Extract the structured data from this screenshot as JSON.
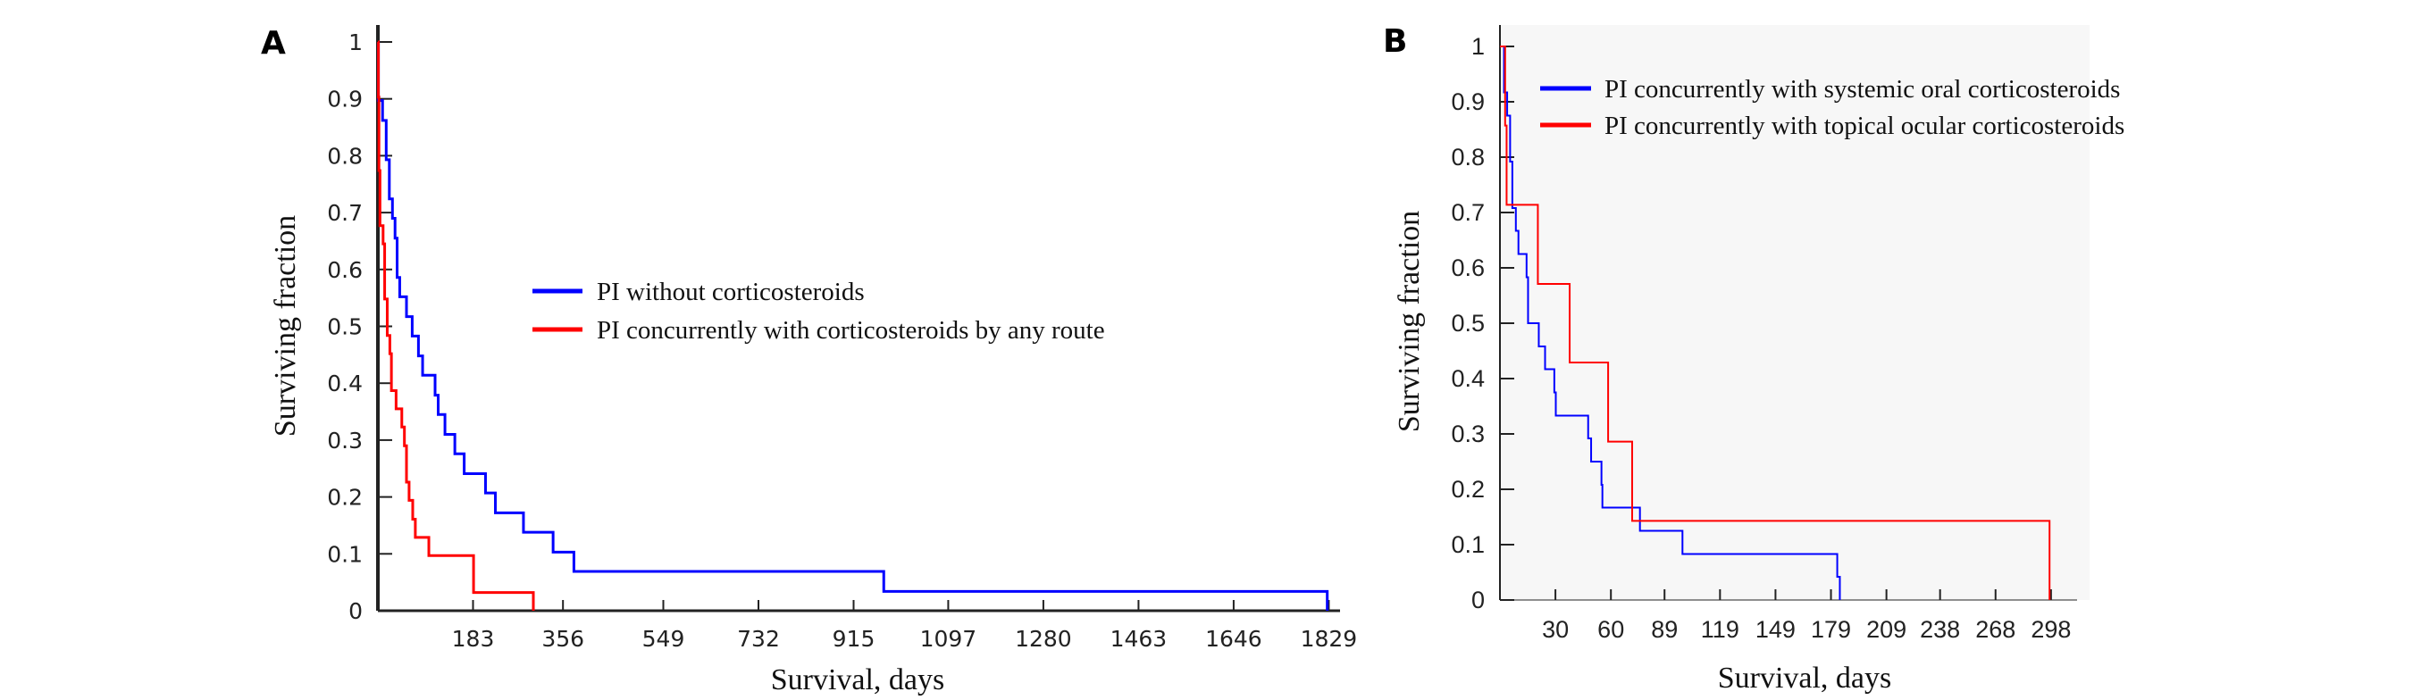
{
  "chart_data": [
    {
      "panel_label": "A",
      "type": "line",
      "step": true,
      "xlabel": "Survival, days",
      "ylabel": "Surviving  fraction",
      "xlim": [
        0,
        1900
      ],
      "ylim": [
        0,
        1
      ],
      "xticks": [
        183,
        356,
        549,
        732,
        915,
        1097,
        1280,
        1463,
        1646,
        1829
      ],
      "yticks": [
        0,
        0.1,
        0.2,
        0.3,
        0.4,
        0.5,
        0.6,
        0.7,
        0.8,
        0.9,
        1
      ],
      "ytick_labels": [
        "0",
        "0.1",
        "0.2",
        "0.3",
        "0.4",
        "0.5",
        "0.6",
        "0.7",
        "0.8",
        "0.9",
        "1"
      ],
      "grid": false,
      "legend_position": "center",
      "series": [
        {
          "name": "PI without corticosteroids",
          "color": "#0000ff",
          "points": [
            [
              0,
              1
            ],
            [
              1,
              0.897
            ],
            [
              9,
              0.862
            ],
            [
              16,
              0.793
            ],
            [
              22,
              0.724
            ],
            [
              28,
              0.69
            ],
            [
              33,
              0.655
            ],
            [
              37,
              0.586
            ],
            [
              42,
              0.552
            ],
            [
              55,
              0.517
            ],
            [
              66,
              0.483
            ],
            [
              78,
              0.448
            ],
            [
              86,
              0.414
            ],
            [
              110,
              0.379
            ],
            [
              116,
              0.345
            ],
            [
              129,
              0.31
            ],
            [
              148,
              0.276
            ],
            [
              166,
              0.241
            ],
            [
              207,
              0.207
            ],
            [
              226,
              0.172
            ],
            [
              280,
              0.138
            ],
            [
              337,
              0.103
            ],
            [
              377,
              0.069
            ],
            [
              973,
              0.034
            ],
            [
              1826,
              0
            ]
          ]
        },
        {
          "name": "PI concurrently with corticosteroids by any route",
          "color": "#ff0000",
          "points": [
            [
              0,
              1
            ],
            [
              1,
              0.903
            ],
            [
              2,
              0.774
            ],
            [
              4,
              0.677
            ],
            [
              10,
              0.645
            ],
            [
              13,
              0.548
            ],
            [
              18,
              0.484
            ],
            [
              23,
              0.452
            ],
            [
              26,
              0.387
            ],
            [
              35,
              0.355
            ],
            [
              46,
              0.323
            ],
            [
              51,
              0.29
            ],
            [
              55,
              0.226
            ],
            [
              60,
              0.194
            ],
            [
              67,
              0.161
            ],
            [
              72,
              0.129
            ],
            [
              98,
              0.097
            ],
            [
              184,
              0.032
            ],
            [
              299,
              0
            ]
          ]
        }
      ]
    },
    {
      "panel_label": "B",
      "type": "line",
      "step": true,
      "xlabel": "Survival, days",
      "ylabel": "Surviving fraction",
      "xlim": [
        0,
        312
      ],
      "ylim": [
        0,
        1
      ],
      "xticks": [
        30,
        60,
        89,
        119,
        149,
        179,
        209,
        238,
        268,
        298
      ],
      "yticks": [
        0,
        0.1,
        0.2,
        0.3,
        0.4,
        0.5,
        0.6,
        0.7,
        0.8,
        0.9,
        1
      ],
      "ytick_labels": [
        "0",
        "0.1",
        "0.2",
        "0.3",
        "0.4",
        "0.5",
        "0.6",
        "0.7",
        "0.8",
        "0.9",
        "1"
      ],
      "grid": false,
      "legend_position": "top-right",
      "background": "#f7f7f7",
      "series": [
        {
          "name": "PI concurrently with systemic oral corticosteroids",
          "color": "#0000ff",
          "points": [
            [
              0,
              1
            ],
            [
              2.2,
              0.917
            ],
            [
              3.9,
              0.875
            ],
            [
              5.5,
              0.792
            ],
            [
              6.7,
              0.708
            ],
            [
              8.6,
              0.667
            ],
            [
              10,
              0.625
            ],
            [
              14.4,
              0.583
            ],
            [
              15.2,
              0.5
            ],
            [
              21,
              0.458
            ],
            [
              24.4,
              0.417
            ],
            [
              29.4,
              0.375
            ],
            [
              30.2,
              0.333
            ],
            [
              47.7,
              0.292
            ],
            [
              49.3,
              0.25
            ],
            [
              54.9,
              0.208
            ],
            [
              55.4,
              0.167
            ],
            [
              75.7,
              0.125
            ],
            [
              98.7,
              0.083
            ],
            [
              182.4,
              0.042
            ],
            [
              183.8,
              0
            ]
          ]
        },
        {
          "name": "PI concurrently with topical ocular corticosteroids",
          "color": "#ff0000",
          "points": [
            [
              0,
              1
            ],
            [
              2.8,
              0.857
            ],
            [
              3.6,
              0.714
            ],
            [
              20.5,
              0.571
            ],
            [
              37.7,
              0.429
            ],
            [
              58.5,
              0.286
            ],
            [
              71.5,
              0.143
            ],
            [
              297.2,
              0
            ]
          ]
        }
      ]
    }
  ]
}
